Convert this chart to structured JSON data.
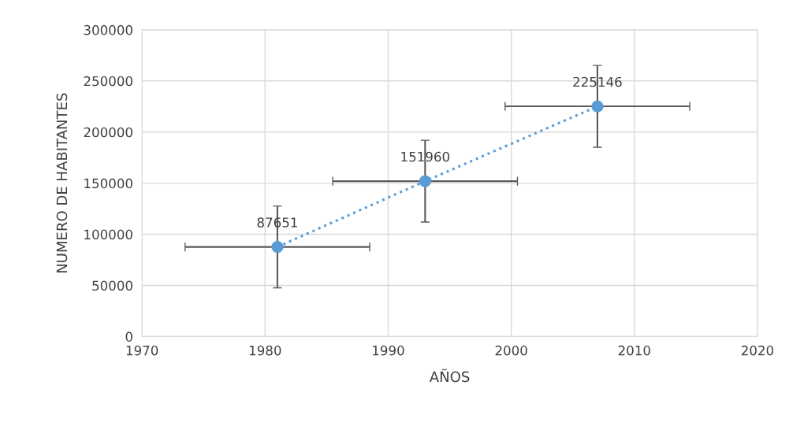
{
  "chart_data": {
    "type": "line",
    "xlabel": "AÑOS",
    "ylabel": "NUMERO DE HABITANTES",
    "x": [
      1981,
      1993,
      2007
    ],
    "series": [
      {
        "color": "#5b9bd5",
        "values": [
          87651,
          151960,
          225146
        ],
        "errors": [
          40000,
          40000,
          40000
        ],
        "xerrors": [
          7.5,
          7.5,
          7.5
        ]
      }
    ],
    "xlim": [
      1970,
      2020
    ],
    "xticks": [
      1970,
      1980,
      1990,
      2000,
      2010,
      2020
    ],
    "ylim": [
      0,
      300000
    ],
    "yticks": [
      0,
      50000,
      100000,
      150000,
      200000,
      250000,
      300000
    ],
    "grid": true,
    "marker": "circle",
    "line_style": "dotted",
    "data_labels": true
  }
}
